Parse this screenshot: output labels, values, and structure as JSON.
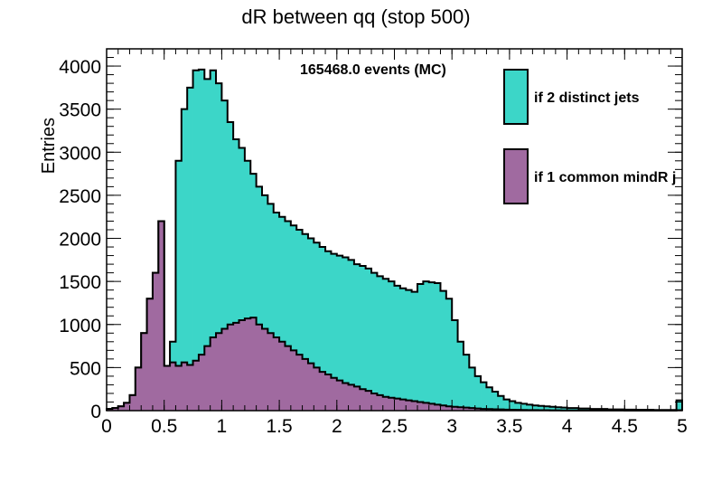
{
  "chart_data": {
    "type": "histogram",
    "title": "dR between qq (stop 500)",
    "xlabel": "",
    "ylabel": "Entries",
    "annotation": "165468.0 events (MC)",
    "xlim": [
      0,
      5
    ],
    "ylim": [
      0,
      4200
    ],
    "x_ticks": [
      "0",
      "0.5",
      "1",
      "1.5",
      "2",
      "2.5",
      "3",
      "3.5",
      "4",
      "4.5",
      "5"
    ],
    "y_ticks": [
      "0",
      "500",
      "1000",
      "1500",
      "2000",
      "2500",
      "3000",
      "3500",
      "4000"
    ],
    "bin_width": 0.05,
    "bin_start": 0,
    "grid": false,
    "legend_position": "top-right",
    "series": [
      {
        "name": "if 2 distinct jets",
        "color": "#3cd6c8",
        "values": [
          20,
          30,
          50,
          90,
          180,
          500,
          900,
          1300,
          1600,
          2200,
          520,
          800,
          2900,
          3500,
          3750,
          3950,
          3960,
          3850,
          3950,
          3800,
          3600,
          3350,
          3150,
          3050,
          2900,
          2750,
          2600,
          2500,
          2400,
          2300,
          2250,
          2200,
          2150,
          2100,
          2050,
          2000,
          1950,
          1900,
          1850,
          1820,
          1800,
          1780,
          1750,
          1700,
          1680,
          1650,
          1600,
          1560,
          1530,
          1500,
          1450,
          1420,
          1400,
          1380,
          1470,
          1500,
          1490,
          1480,
          1390,
          1300,
          1050,
          800,
          650,
          500,
          400,
          330,
          270,
          220,
          170,
          130,
          110,
          90,
          80,
          70,
          60,
          55,
          50,
          45,
          40,
          35,
          30,
          30,
          25,
          25,
          20,
          20,
          20,
          15,
          15,
          15,
          12,
          12,
          10,
          10,
          10,
          8,
          8,
          8,
          8,
          120
        ]
      },
      {
        "name": "if 1 common mindR j",
        "color": "#a06aa0",
        "values": [
          20,
          30,
          50,
          90,
          180,
          500,
          900,
          1300,
          1600,
          2200,
          520,
          560,
          520,
          560,
          530,
          580,
          650,
          750,
          850,
          900,
          950,
          1000,
          1020,
          1050,
          1070,
          1080,
          1000,
          950,
          900,
          850,
          800,
          750,
          700,
          650,
          600,
          550,
          500,
          450,
          420,
          380,
          350,
          320,
          300,
          280,
          250,
          230,
          200,
          180,
          160,
          150,
          140,
          130,
          120,
          110,
          100,
          90,
          80,
          70,
          60,
          50,
          45,
          40,
          35,
          30,
          25,
          20,
          18,
          16,
          14,
          12,
          10,
          9,
          8,
          7,
          6,
          5,
          5,
          4,
          4,
          3,
          3,
          3,
          3,
          2,
          2,
          2,
          2,
          2,
          2,
          2,
          1,
          1,
          1,
          1,
          1,
          1,
          1,
          1,
          1,
          5
        ]
      }
    ]
  }
}
